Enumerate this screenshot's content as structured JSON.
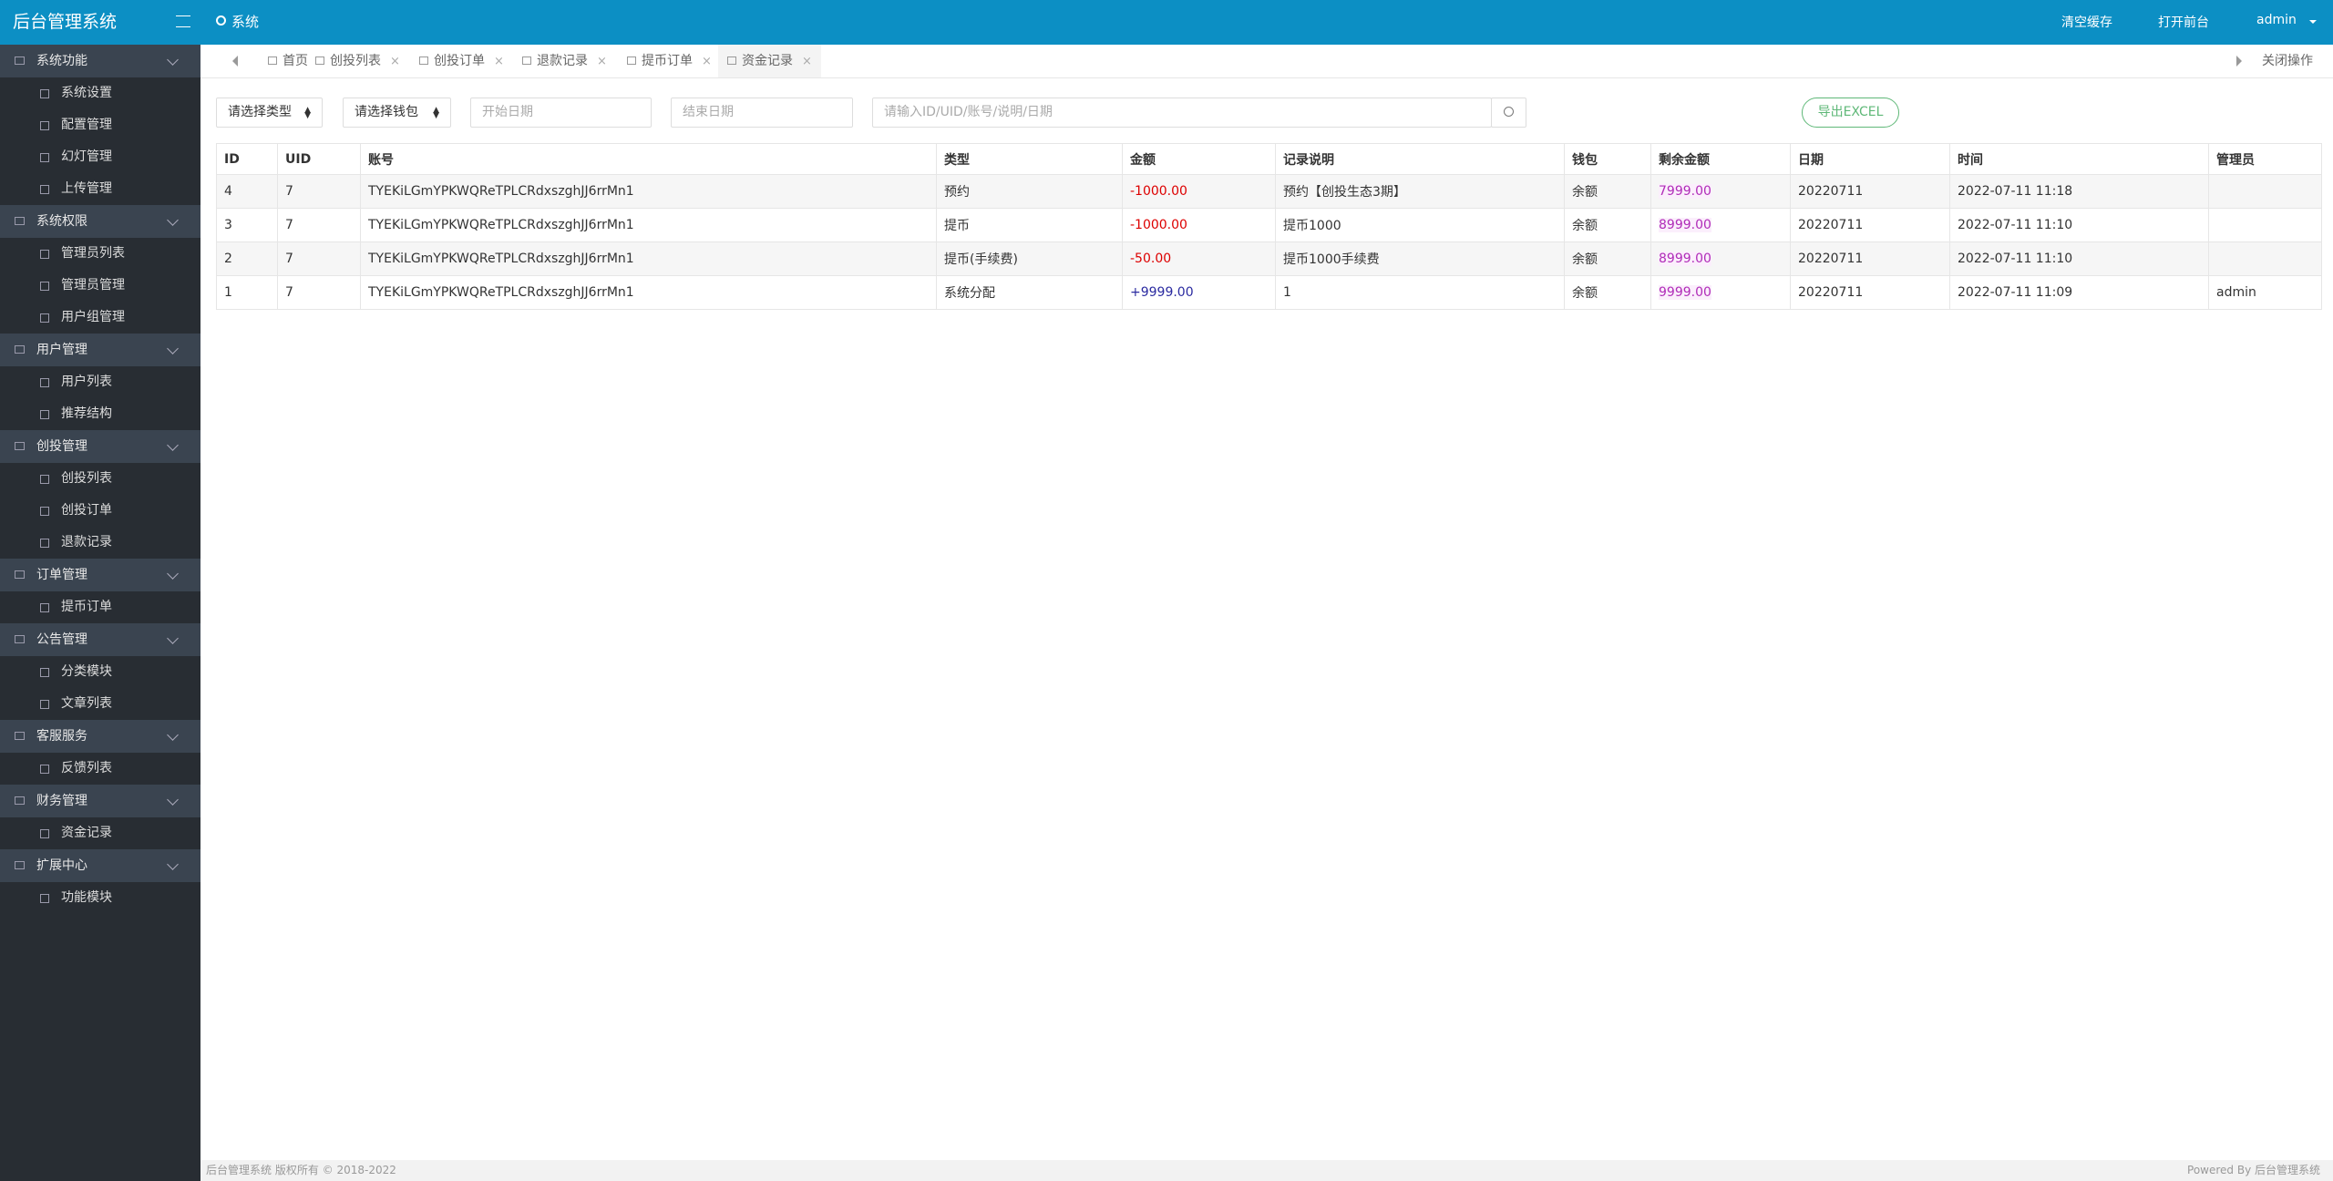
{
  "sidebar": {
    "logo": "后台管理系统",
    "groups": [
      {
        "title": "系统功能",
        "items": [
          "系统设置",
          "配置管理",
          "幻灯管理",
          "上传管理"
        ]
      },
      {
        "title": "系统权限",
        "items": [
          "管理员列表",
          "管理员管理",
          "用户组管理"
        ]
      },
      {
        "title": "用户管理",
        "items": [
          "用户列表",
          "推荐结构"
        ]
      },
      {
        "title": "创投管理",
        "items": [
          "创投列表",
          "创投订单",
          "退款记录"
        ]
      },
      {
        "title": "订单管理",
        "items": [
          "提币订单"
        ]
      },
      {
        "title": "公告管理",
        "items": [
          "分类模块",
          "文章列表"
        ]
      },
      {
        "title": "客服服务",
        "items": [
          "反馈列表"
        ]
      },
      {
        "title": "财务管理",
        "items": [
          "资金记录"
        ]
      },
      {
        "title": "扩展中心",
        "items": [
          "功能模块"
        ]
      }
    ]
  },
  "header": {
    "left": "系统",
    "right": [
      "清空缓存",
      "打开前台",
      "admin"
    ]
  },
  "tabs": {
    "items": [
      "首页",
      "创投列表",
      "创投订单",
      "退款记录",
      "提币订单",
      "资金记录"
    ],
    "close_all": "关闭操作"
  },
  "filters": {
    "type": "请选择类型",
    "wallet": "请选择钱包",
    "start": "开始日期",
    "end": "结束日期",
    "search": "请输入ID/UID/账号/说明/日期",
    "export": "导出EXCEL"
  },
  "table": {
    "columns": [
      "ID",
      "UID",
      "账号",
      "类型",
      "金额",
      "记录说明",
      "钱包",
      "剩余金额",
      "日期",
      "时间",
      "管理员"
    ],
    "rows": [
      [
        "4",
        "7",
        "TYEKiLGmYPKWQReTPLCRdxszghJJ6rrMn1",
        "预约",
        "-1000.00",
        "预约【创投生态3期】",
        "余额",
        "7999.00",
        "20220711",
        "2022-07-11 11:18",
        ""
      ],
      [
        "3",
        "7",
        "TYEKiLGmYPKWQReTPLCRdxszghJJ6rrMn1",
        "提币",
        "-1000.00",
        "提币1000",
        "余额",
        "8999.00",
        "20220711",
        "2022-07-11 11:10",
        ""
      ],
      [
        "2",
        "7",
        "TYEKiLGmYPKWQReTPLCRdxszghJJ6rrMn1",
        "提币(手续费)",
        "-50.00",
        "提币1000手续费",
        "余额",
        "8999.00",
        "20220711",
        "2022-07-11 11:10",
        ""
      ],
      [
        "1",
        "7",
        "TYEKiLGmYPKWQReTPLCRdxszghJJ6rrMn1",
        "系统分配",
        "+9999.00",
        "1",
        "余额",
        "9999.00",
        "20220711",
        "2022-07-11 11:09",
        "admin"
      ]
    ]
  },
  "footer": {
    "left": "后台管理系统 版权所有 © 2018-2022",
    "right": "Powered By 后台管理系统"
  }
}
